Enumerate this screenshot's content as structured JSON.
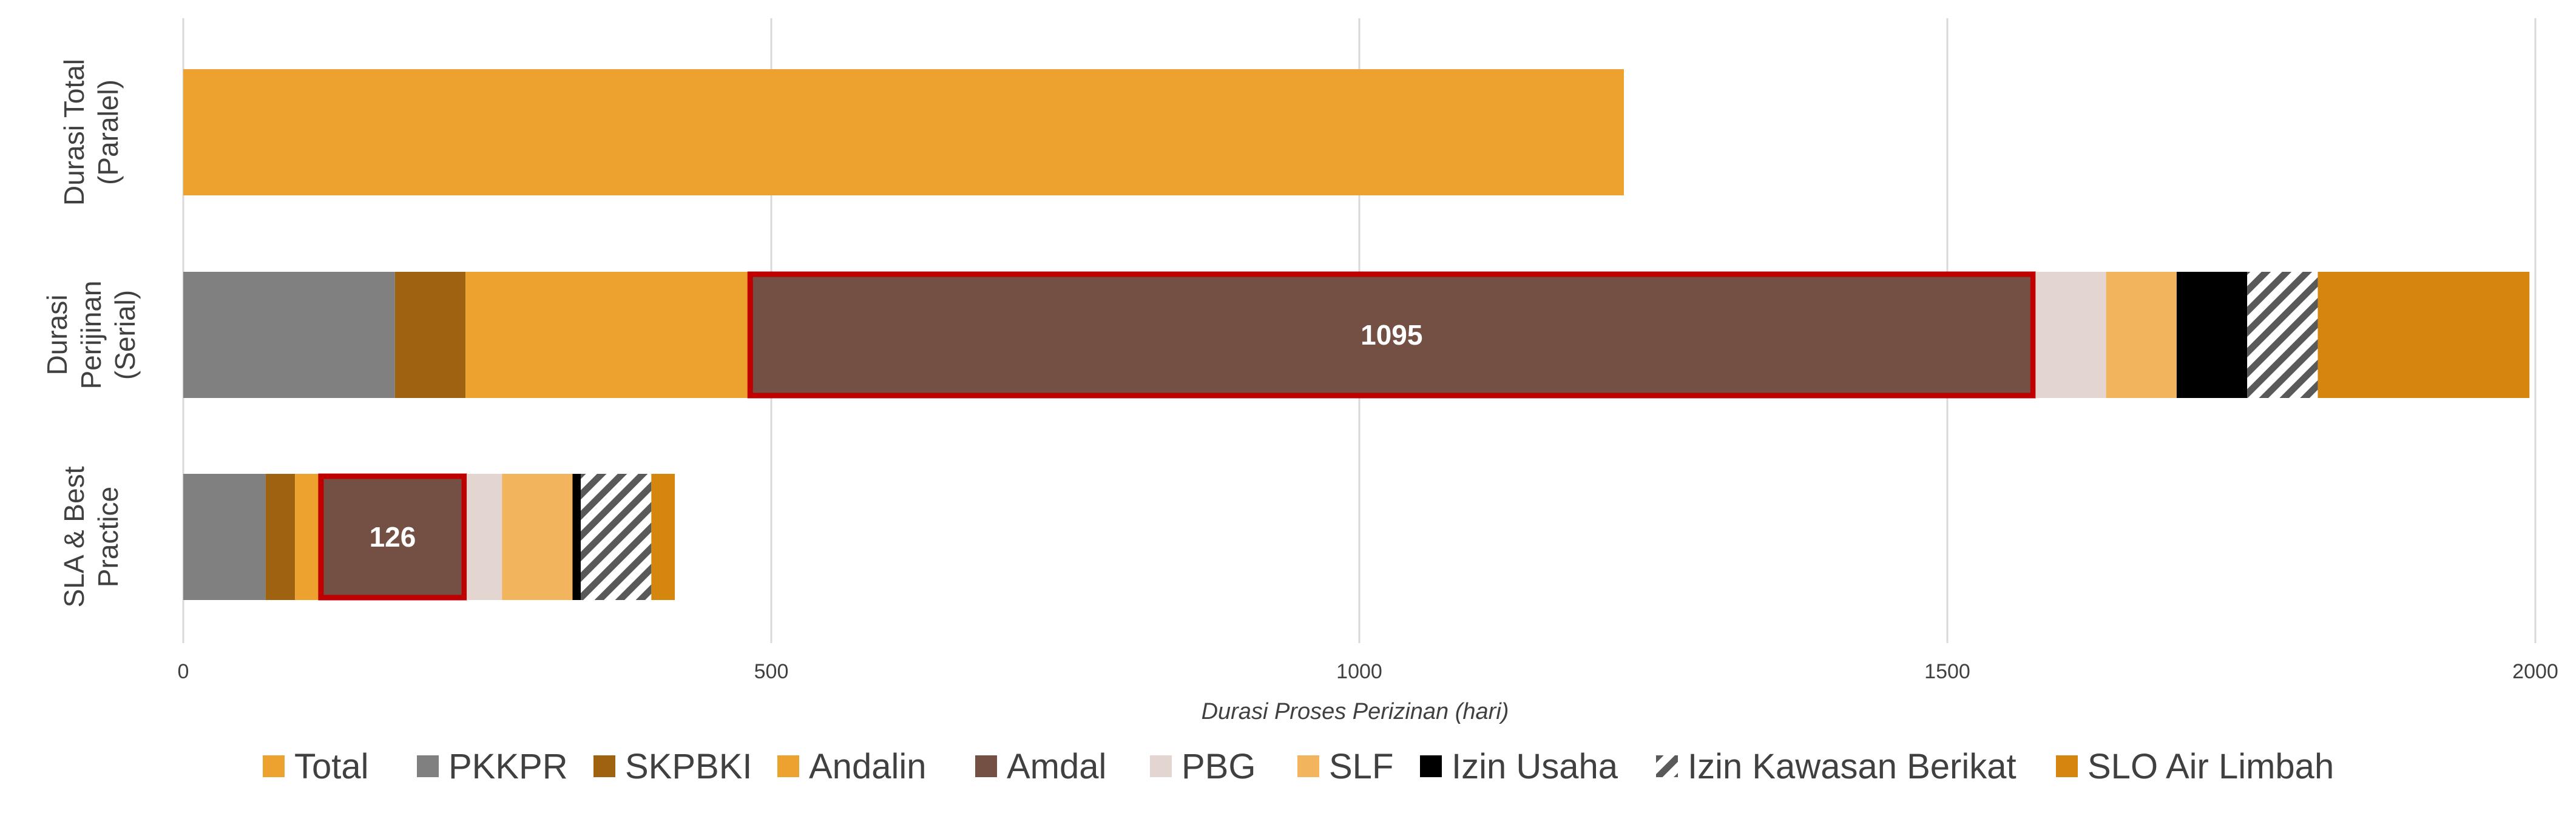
{
  "chart_data": {
    "type": "bar",
    "orientation": "horizontal",
    "stacked": true,
    "categories": [
      "Durasi Total (Paralel)",
      "Durasi Perijinan (Serial)",
      "SLA & Best Practice"
    ],
    "category_lines": [
      [
        "Durasi Total",
        "(Paralel)"
      ],
      [
        "Durasi",
        "Perijinan",
        "(Serial)"
      ],
      [
        "SLA & Best",
        "Practice"
      ]
    ],
    "xlabel": "Durasi Proses Perizinan (hari)",
    "xlim": [
      0,
      2000
    ],
    "xticks": [
      0,
      500,
      1000,
      1500,
      2000
    ],
    "grid": "vertical",
    "legend_position": "bottom",
    "series": [
      {
        "name": "Total",
        "color": "#EDA22F",
        "values": [
          1225,
          0,
          0
        ]
      },
      {
        "name": "PKKPR",
        "color": "#808080",
        "values": [
          0,
          180,
          70
        ]
      },
      {
        "name": "SKPBKI",
        "color": "#9E6211",
        "values": [
          0,
          60,
          25
        ]
      },
      {
        "name": "Andalin",
        "color": "#EDA22F",
        "values": [
          0,
          240,
          20
        ]
      },
      {
        "name": "Amdal",
        "color": "#744F44",
        "values": [
          0,
          1095,
          126
        ],
        "highlight": true
      },
      {
        "name": "PBG",
        "color": "#E3D6D1",
        "values": [
          0,
          60,
          30
        ]
      },
      {
        "name": "SLF",
        "color": "#F2B45D",
        "values": [
          0,
          60,
          60
        ]
      },
      {
        "name": "Izin Usaha",
        "color": "#000000",
        "values": [
          0,
          60,
          7
        ]
      },
      {
        "name": "Izin Kawasan Berikat",
        "color": "#595959",
        "pattern": "diagonal-hatch",
        "values": [
          0,
          60,
          60
        ]
      },
      {
        "name": "SLO Air Limbah",
        "color": "#D4860F",
        "values": [
          0,
          180,
          20
        ]
      }
    ],
    "data_labels": [
      {
        "category": "Durasi Perijinan (Serial)",
        "series": "Amdal",
        "text": "1095"
      },
      {
        "category": "SLA & Best Practice",
        "series": "Amdal",
        "text": "126"
      }
    ],
    "highlight_color": "#C00000"
  }
}
